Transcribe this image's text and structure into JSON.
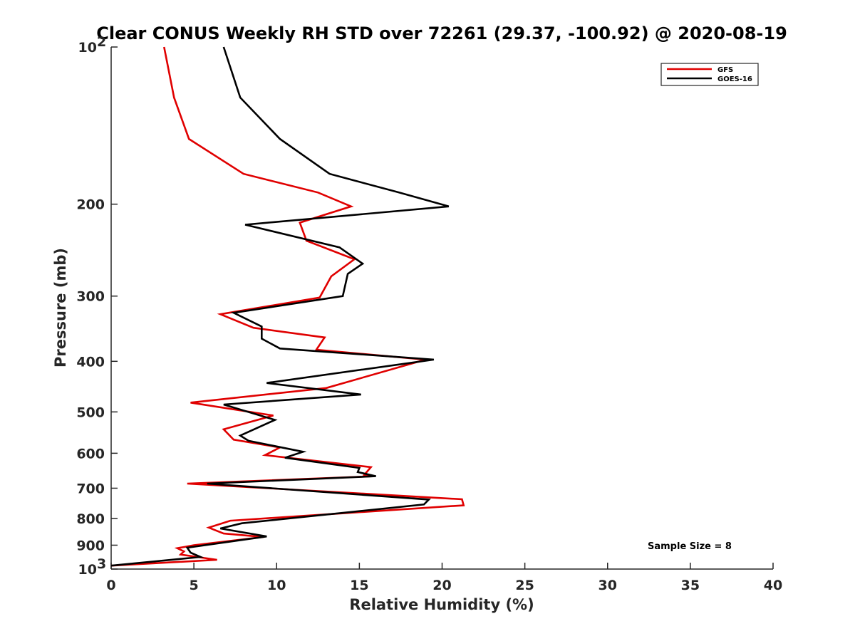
{
  "chart_data": {
    "type": "line",
    "title": "Clear CONUS Weekly RH STD over 72261 (29.37, -100.92) @ 2020-08-19",
    "xlabel": "Relative Humidity (%)",
    "ylabel": "Pressure (mb)",
    "xlim": [
      0,
      40
    ],
    "ylim": [
      1000,
      100
    ],
    "y_scale": "log",
    "y_reversed": true,
    "x_ticks": [
      "0",
      "5",
      "10",
      "15",
      "20",
      "25",
      "30",
      "35",
      "40"
    ],
    "y_ticks": [
      {
        "value": 100,
        "label": "10",
        "sup": "2"
      },
      {
        "value": 200,
        "label": "200"
      },
      {
        "value": 300,
        "label": "300"
      },
      {
        "value": 400,
        "label": "400"
      },
      {
        "value": 500,
        "label": "500"
      },
      {
        "value": 600,
        "label": "600"
      },
      {
        "value": 700,
        "label": "700"
      },
      {
        "value": 800,
        "label": "800"
      },
      {
        "value": 900,
        "label": "900"
      },
      {
        "value": 1000,
        "label": "10",
        "sup": "3"
      }
    ],
    "grid": false,
    "legend_position": "top-right",
    "annotation": "Sample Size = 8",
    "series": [
      {
        "name": "GFS",
        "color": "#e00000",
        "points": [
          [
            3.2,
            100
          ],
          [
            3.8,
            125
          ],
          [
            4.7,
            150
          ],
          [
            8.0,
            175
          ],
          [
            12.5,
            190
          ],
          [
            14.5,
            202
          ],
          [
            11.4,
            217
          ],
          [
            11.8,
            235
          ],
          [
            14.7,
            255
          ],
          [
            13.3,
            275
          ],
          [
            12.6,
            302
          ],
          [
            6.6,
            325
          ],
          [
            8.6,
            345
          ],
          [
            12.9,
            360
          ],
          [
            12.4,
            380
          ],
          [
            19.0,
            397
          ],
          [
            13.0,
            450
          ],
          [
            4.8,
            480
          ],
          [
            9.8,
            508
          ],
          [
            6.8,
            540
          ],
          [
            7.4,
            565
          ],
          [
            10.2,
            585
          ],
          [
            9.3,
            605
          ],
          [
            15.7,
            638
          ],
          [
            15.3,
            660
          ],
          [
            15.9,
            664
          ],
          [
            4.6,
            686
          ],
          [
            21.2,
            735
          ],
          [
            21.3,
            755
          ],
          [
            7.2,
            808
          ],
          [
            5.9,
            833
          ],
          [
            6.8,
            855
          ],
          [
            9.2,
            868
          ],
          [
            5.0,
            900
          ],
          [
            4.0,
            912
          ],
          [
            4.4,
            925
          ],
          [
            4.2,
            938
          ],
          [
            6.4,
            960
          ],
          [
            0.0,
            985
          ]
        ]
      },
      {
        "name": "GOES-16",
        "color": "#000000",
        "points": [
          [
            6.8,
            100
          ],
          [
            7.8,
            125
          ],
          [
            10.2,
            150
          ],
          [
            13.2,
            175
          ],
          [
            17.4,
            190
          ],
          [
            20.4,
            202
          ],
          [
            8.1,
            219
          ],
          [
            13.8,
            242
          ],
          [
            15.2,
            260
          ],
          [
            14.3,
            272
          ],
          [
            14.0,
            300
          ],
          [
            7.4,
            323
          ],
          [
            9.1,
            343
          ],
          [
            9.1,
            362
          ],
          [
            10.2,
            378
          ],
          [
            19.5,
            397
          ],
          [
            9.4,
            440
          ],
          [
            15.1,
            463
          ],
          [
            6.8,
            484
          ],
          [
            9.9,
            518
          ],
          [
            7.8,
            555
          ],
          [
            8.3,
            568
          ],
          [
            11.6,
            596
          ],
          [
            10.5,
            612
          ],
          [
            15.0,
            640
          ],
          [
            14.9,
            652
          ],
          [
            16.0,
            664
          ],
          [
            5.8,
            686
          ],
          [
            19.2,
            736
          ],
          [
            18.9,
            752
          ],
          [
            7.9,
            817
          ],
          [
            6.6,
            836
          ],
          [
            9.4,
            866
          ],
          [
            4.6,
            910
          ],
          [
            4.8,
            930
          ],
          [
            5.4,
            948
          ],
          [
            0.0,
            985
          ]
        ]
      }
    ]
  }
}
